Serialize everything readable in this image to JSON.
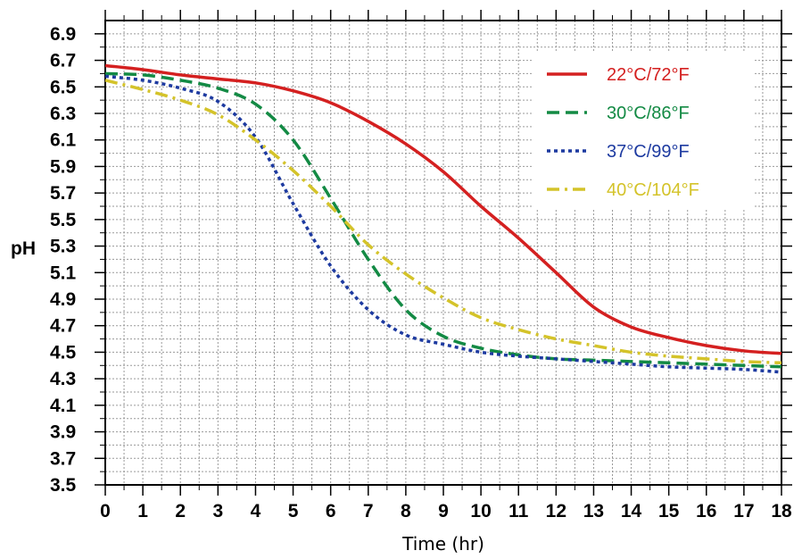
{
  "chart_data": {
    "type": "line",
    "title": "",
    "xlabel": "Time (hr)",
    "ylabel": "pH",
    "xlim": [
      0,
      18
    ],
    "ylim": [
      3.5,
      7.0
    ],
    "x_ticks": [
      "0",
      "1",
      "2",
      "3",
      "4",
      "5",
      "6",
      "7",
      "8",
      "9",
      "10",
      "11",
      "12",
      "13",
      "14",
      "15",
      "16",
      "17",
      "18"
    ],
    "y_ticks": [
      "3.5",
      "3.7",
      "3.9",
      "4.1",
      "4.3",
      "4.5",
      "4.7",
      "4.9",
      "5.1",
      "5.3",
      "5.5",
      "5.7",
      "5.9",
      "6.1",
      "6.3",
      "6.5",
      "6.7",
      "6.9"
    ],
    "grid": true,
    "legend_position": "top-right",
    "series": [
      {
        "name": "22°C/72°F",
        "color": "#d42020",
        "dash": "solid",
        "x": [
          0,
          1,
          2,
          3,
          4,
          5,
          6,
          7,
          8,
          9,
          10,
          11,
          12,
          13,
          14,
          15,
          16,
          17,
          18
        ],
        "values": [
          6.66,
          6.63,
          6.59,
          6.56,
          6.53,
          6.47,
          6.38,
          6.24,
          6.07,
          5.86,
          5.6,
          5.36,
          5.1,
          4.84,
          4.69,
          4.61,
          4.55,
          4.51,
          4.49
        ]
      },
      {
        "name": "30°C/86°F",
        "color": "#138a44",
        "dash": "dashed",
        "x": [
          0,
          1,
          2,
          3,
          4,
          5,
          6,
          7,
          8,
          9,
          10,
          11,
          12,
          13,
          14,
          15,
          16,
          17,
          18
        ],
        "values": [
          6.6,
          6.59,
          6.55,
          6.49,
          6.37,
          6.1,
          5.66,
          5.2,
          4.82,
          4.62,
          4.53,
          4.48,
          4.45,
          4.44,
          4.43,
          4.42,
          4.41,
          4.4,
          4.39
        ]
      },
      {
        "name": "37°C/99°F",
        "color": "#1d3aa0",
        "dash": "dotted",
        "x": [
          0,
          1,
          2,
          3,
          4,
          5,
          6,
          7,
          8,
          9,
          10,
          11,
          12,
          13,
          14,
          15,
          16,
          17,
          18
        ],
        "values": [
          6.58,
          6.55,
          6.49,
          6.39,
          6.12,
          5.62,
          5.15,
          4.82,
          4.63,
          4.56,
          4.5,
          4.47,
          4.45,
          4.43,
          4.41,
          4.39,
          4.38,
          4.37,
          4.35
        ]
      },
      {
        "name": "40°C/104°F",
        "color": "#d4c32a",
        "dash": "dashdot",
        "x": [
          0,
          1,
          2,
          3,
          4,
          5,
          6,
          7,
          8,
          9,
          10,
          11,
          12,
          13,
          14,
          15,
          16,
          17,
          18
        ],
        "values": [
          6.55,
          6.48,
          6.4,
          6.29,
          6.1,
          5.87,
          5.6,
          5.31,
          5.09,
          4.91,
          4.76,
          4.67,
          4.6,
          4.55,
          4.5,
          4.47,
          4.45,
          4.43,
          4.42
        ]
      }
    ]
  }
}
